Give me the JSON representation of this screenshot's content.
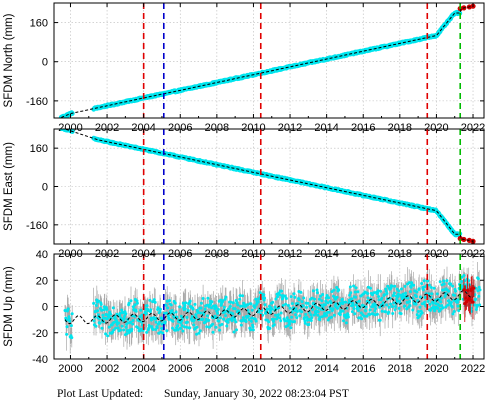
{
  "footer": {
    "label": "Plot Last Updated:",
    "timestamp": "Sunday, January 30, 2022 08:23:04 PST"
  },
  "colors": {
    "data_main": "#00e5ee",
    "data_recent": "#d00000",
    "error_bar": "#a8a8a8",
    "model_line": "#000000",
    "event_red": "#e00000",
    "event_blue": "#0000cc",
    "event_green": "#00bb00"
  },
  "chart_data": [
    {
      "type": "scatter",
      "title": "",
      "xlabel": "",
      "ylabel": "SFDM North (mm)",
      "xlim": [
        1999.1,
        2022.6
      ],
      "ylim": [
        -230,
        240
      ],
      "xticks": [
        "2000",
        "2002",
        "2004",
        "2006",
        "2008",
        "2010",
        "2012",
        "2014",
        "2016",
        "2018",
        "2020",
        "2022"
      ],
      "yticks": [
        "-160",
        "0",
        "160"
      ],
      "ytick_values": [
        -160,
        0,
        160
      ],
      "grid": true,
      "event_lines": [
        {
          "x": 2004.0,
          "color": "red"
        },
        {
          "x": 2005.1,
          "color": "blue"
        },
        {
          "x": 2010.4,
          "color": "red"
        },
        {
          "x": 2019.5,
          "color": "red"
        },
        {
          "x": 2021.3,
          "color": "green"
        }
      ],
      "series": [
        {
          "x": [
            1999.5,
            2000.0,
            2002.0,
            2004.0,
            2006.0,
            2008.0,
            2010.0,
            2012.0,
            2014.0,
            2016.0,
            2018.0,
            2020.0,
            2021.0
          ],
          "y": [
            -228,
            -212,
            -180,
            -148,
            -117,
            -85,
            -53,
            -21,
            11,
            43,
            75,
            107,
            199
          ]
        },
        {
          "x": [
            2021.3,
            2021.5,
            2021.8,
            2022.0
          ],
          "y": [
            217,
            220,
            224,
            227
          ]
        }
      ]
    },
    {
      "type": "scatter",
      "title": "",
      "xlabel": "",
      "ylabel": "SFDM East (mm)",
      "xlim": [
        1999.1,
        2022.6
      ],
      "ylim": [
        -240,
        240
      ],
      "xticks": [
        "2000",
        "2002",
        "2004",
        "2006",
        "2008",
        "2010",
        "2012",
        "2014",
        "2016",
        "2018",
        "2020",
        "2022"
      ],
      "yticks": [
        "-160",
        "0",
        "160"
      ],
      "ytick_values": [
        -160,
        0,
        160
      ],
      "grid": true,
      "event_lines": [
        {
          "x": 2004.0,
          "color": "red"
        },
        {
          "x": 2005.1,
          "color": "blue"
        },
        {
          "x": 2010.4,
          "color": "red"
        },
        {
          "x": 2019.5,
          "color": "red"
        },
        {
          "x": 2021.3,
          "color": "green"
        }
      ],
      "series": [
        {
          "x": [
            1999.5,
            2001.5,
            2004.0,
            2006.0,
            2008.0,
            2010.0,
            2012.0,
            2014.0,
            2016.0,
            2018.0,
            2020.0,
            2021.0
          ],
          "y": [
            245,
            195,
            155,
            123,
            91,
            59,
            27,
            -5,
            -37,
            -69,
            -101,
            -199
          ]
        },
        {
          "x": [
            2021.3,
            2021.5,
            2021.8,
            2022.0
          ],
          "y": [
            -217,
            -221,
            -225,
            -229
          ]
        }
      ]
    },
    {
      "type": "scatter",
      "title": "",
      "xlabel": "",
      "ylabel": "SFDM Up (mm)",
      "xlim": [
        1999.1,
        2022.6
      ],
      "ylim": [
        -40,
        40
      ],
      "xticks": [
        "2000",
        "2002",
        "2004",
        "2006",
        "2008",
        "2010",
        "2012",
        "2014",
        "2016",
        "2018",
        "2020",
        "2022"
      ],
      "yticks": [
        "-40",
        "-20",
        "0",
        "20",
        "40"
      ],
      "ytick_values": [
        -40,
        -20,
        0,
        20,
        40
      ],
      "grid": true,
      "event_lines": [
        {
          "x": 2004.0,
          "color": "red"
        },
        {
          "x": 2005.1,
          "color": "blue"
        },
        {
          "x": 2010.4,
          "color": "red"
        },
        {
          "x": 2019.5,
          "color": "red"
        },
        {
          "x": 2021.3,
          "color": "green"
        }
      ],
      "series": [
        {
          "x": [
            1999.7,
            2001.3,
            2003.0,
            2005.0,
            2007.0,
            2009.0,
            2011.0,
            2013.0,
            2015.0,
            2017.0,
            2019.0,
            2021.0,
            2022.0
          ],
          "y": [
            -10,
            -10,
            -9,
            -8,
            -7,
            -5,
            -3,
            -1,
            1,
            3,
            6,
            8,
            10
          ]
        }
      ]
    }
  ]
}
